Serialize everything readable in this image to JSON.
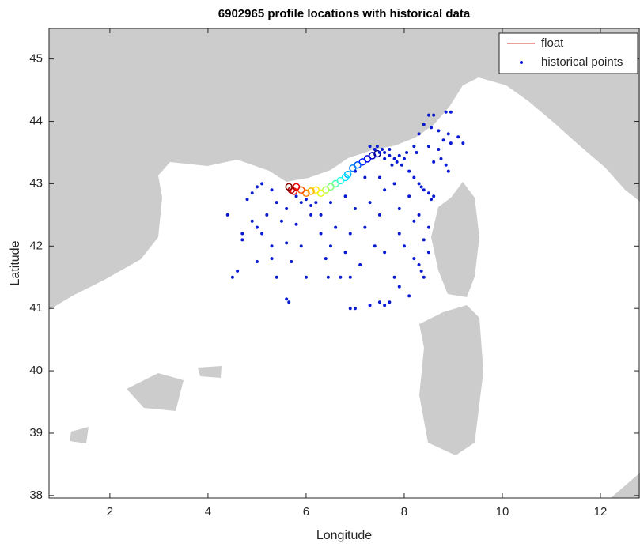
{
  "chart_data": {
    "type": "scatter",
    "title": "6902965 profile locations with historical data",
    "x_label": "Longitude",
    "y_label": "Latitude",
    "xlim": [
      0.76,
      12.79
    ],
    "ylim": [
      37.96,
      45.49
    ],
    "xticks": [
      2,
      4,
      6,
      8,
      10,
      12
    ],
    "yticks": [
      38,
      39,
      40,
      41,
      42,
      43,
      44,
      45
    ],
    "legend": "northeast",
    "colormap": "jet",
    "series": [
      {
        "name": "float",
        "color": "#e06666",
        "x": [
          7.45,
          7.35,
          7.25,
          7.15,
          7.05,
          6.95,
          6.85,
          6.8,
          6.7,
          6.6,
          6.5,
          6.4,
          6.3,
          6.2,
          6.1,
          6.0,
          5.9,
          5.75,
          5.8,
          5.7,
          5.65
        ],
        "values": [
          43.48,
          43.45,
          43.4,
          43.35,
          43.3,
          43.25,
          43.15,
          43.1,
          43.05,
          43.0,
          42.95,
          42.9,
          42.85,
          42.9,
          42.88,
          42.85,
          42.9,
          42.88,
          42.95,
          42.9,
          42.95
        ]
      },
      {
        "name": "historical points",
        "color": "#0a1ad0",
        "x": [
          7.3,
          7.4,
          7.5,
          7.6,
          7.7,
          7.8,
          7.9,
          8.0,
          7.85,
          7.95,
          7.6,
          7.45,
          7.55,
          7.7,
          8.05,
          7.75,
          8.5,
          8.6,
          8.85,
          8.95,
          8.4,
          8.55,
          8.7,
          8.3,
          8.9,
          9.1,
          9.2,
          8.8,
          8.95,
          8.5,
          8.7,
          8.2,
          8.25,
          8.75,
          8.85,
          8.9,
          8.6,
          8.1,
          8.2,
          8.3,
          8.4,
          8.5,
          8.6,
          8.55,
          8.35,
          7.0,
          7.2,
          7.5,
          7.8,
          7.6,
          7.3,
          7.0,
          7.5,
          7.9,
          8.1,
          6.8,
          6.5,
          5.9,
          6.0,
          6.1,
          5.8,
          6.2,
          6.3,
          6.1,
          5.1,
          5.0,
          4.9,
          5.3,
          4.8,
          5.4,
          5.6,
          5.2,
          4.9,
          4.4,
          5.0,
          5.5,
          5.8,
          4.7,
          4.7,
          5.1,
          5.3,
          5.6,
          5.9,
          5.3,
          5.7,
          5.0,
          4.6,
          4.5,
          5.4,
          6.0,
          5.6,
          5.65,
          6.3,
          6.6,
          6.9,
          7.2,
          6.5,
          6.8,
          7.4,
          6.4,
          7.1,
          7.6,
          6.7,
          6.9,
          7.8,
          6.45,
          7.7,
          7.3,
          7.6,
          6.9,
          7.0,
          7.5,
          8.1,
          7.9,
          8.4,
          8.3,
          8.2,
          8.5,
          8.4,
          8.5,
          8.3,
          8.0,
          7.9,
          8.2,
          8.35
        ],
        "values": [
          43.6,
          43.55,
          43.5,
          43.5,
          43.45,
          43.4,
          43.45,
          43.4,
          43.35,
          43.3,
          43.4,
          43.6,
          43.55,
          43.55,
          43.5,
          43.3,
          44.1,
          44.1,
          44.15,
          44.15,
          43.95,
          43.9,
          43.85,
          43.8,
          43.8,
          43.75,
          43.65,
          43.7,
          43.65,
          43.6,
          43.55,
          43.6,
          43.5,
          43.4,
          43.3,
          43.2,
          43.35,
          43.2,
          43.1,
          43.0,
          42.9,
          42.85,
          42.8,
          42.75,
          42.95,
          43.2,
          43.1,
          43.1,
          43.0,
          42.9,
          42.7,
          42.6,
          42.5,
          42.6,
          42.8,
          42.8,
          42.7,
          42.7,
          42.75,
          42.65,
          42.8,
          42.7,
          42.5,
          42.5,
          43.0,
          42.95,
          42.85,
          42.9,
          42.75,
          42.7,
          42.6,
          42.5,
          42.4,
          42.5,
          42.3,
          42.4,
          42.35,
          42.2,
          42.1,
          42.2,
          42.0,
          42.05,
          42.0,
          41.8,
          41.75,
          41.75,
          41.6,
          41.5,
          41.5,
          41.5,
          41.15,
          41.1,
          42.2,
          42.3,
          42.2,
          42.3,
          42.0,
          41.9,
          42.0,
          41.8,
          41.7,
          41.9,
          41.5,
          41.5,
          41.5,
          41.5,
          41.1,
          41.05,
          41.05,
          41.0,
          41.0,
          41.1,
          41.2,
          41.35,
          41.5,
          41.7,
          41.8,
          41.9,
          42.1,
          42.3,
          42.5,
          42.0,
          42.2,
          42.4,
          41.6
        ]
      }
    ]
  }
}
